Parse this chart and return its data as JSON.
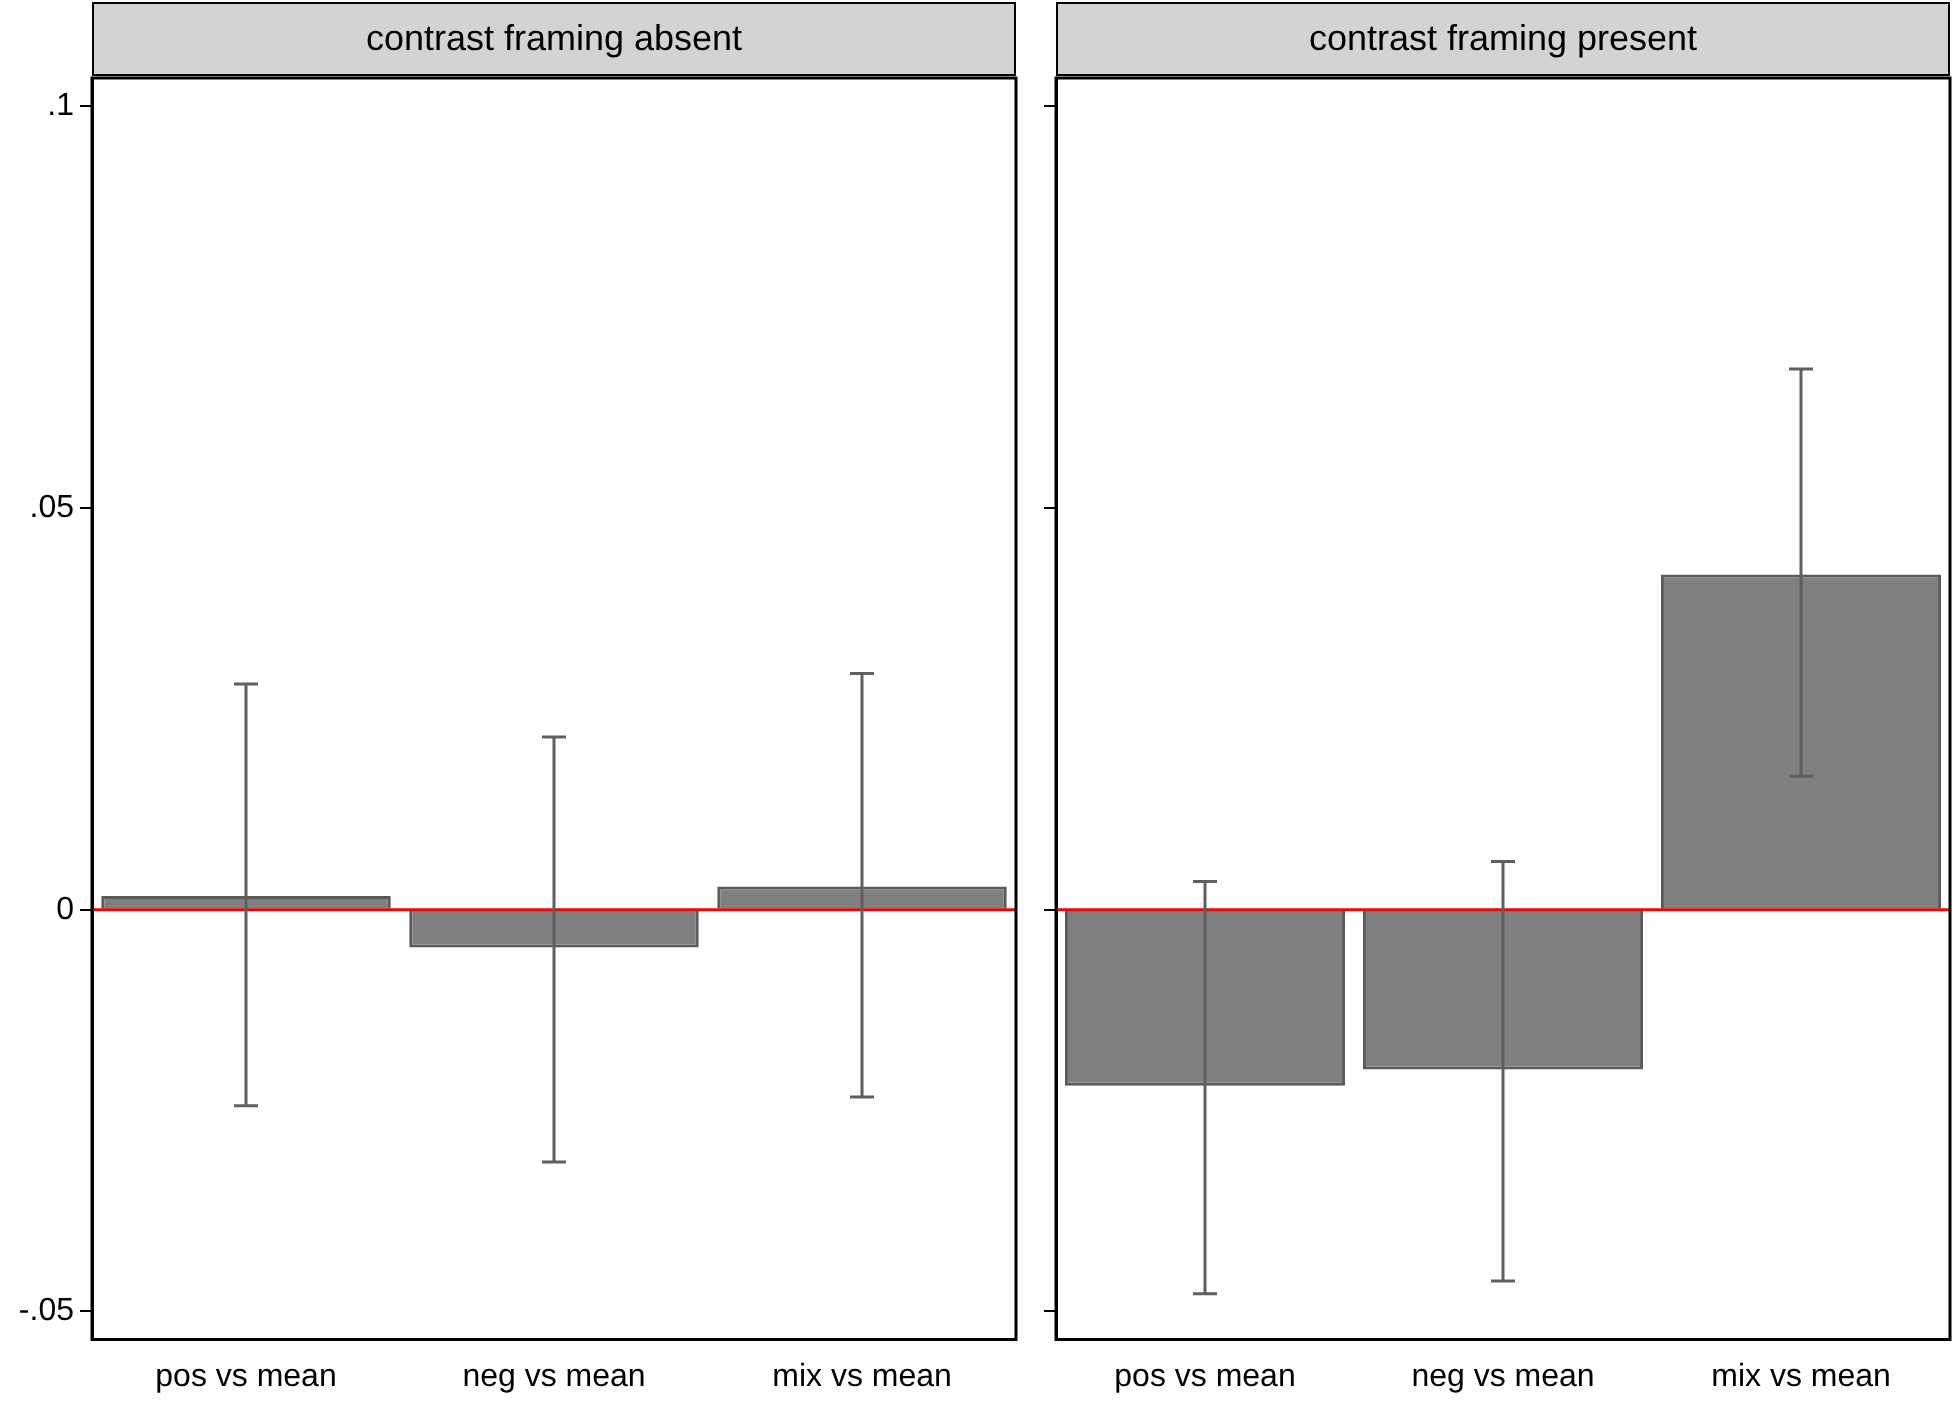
{
  "chart_data": [
    {
      "type": "bar",
      "title": "contrast framing absent",
      "categories": [
        "pos vs mean",
        "neg vs mean",
        "mix vs mean"
      ],
      "values": [
        0.0017,
        -0.0047,
        0.0029
      ],
      "color": "#808080",
      "errors": [
        [
          -0.0244,
          0.0281
        ],
        [
          -0.0314,
          0.0215
        ],
        [
          -0.0233,
          0.0294
        ]
      ],
      "ylim": [
        -0.0535,
        0.1035
      ],
      "yticks": [
        {
          "value": -0.05,
          "label": "-.05"
        },
        {
          "value": 0,
          "label": "0"
        },
        {
          "value": 0.05,
          "label": ".05"
        },
        {
          "value": 0.1,
          "label": ".1"
        }
      ],
      "ref_lines": [
        {
          "axis": "y",
          "value": 0,
          "color": "#ff0000"
        }
      ],
      "grid": false,
      "legend": false
    },
    {
      "type": "bar",
      "title": "contrast framing present",
      "categories": [
        "pos vs mean",
        "neg vs mean",
        "mix vs mean"
      ],
      "values": [
        -0.0219,
        -0.0199,
        0.0417
      ],
      "color": "#808080",
      "errors": [
        [
          -0.0478,
          0.0035
        ],
        [
          -0.0462,
          0.006
        ],
        [
          0.0166,
          0.0673
        ]
      ],
      "ylim": [
        -0.0535,
        0.1035
      ],
      "yticks": [
        {
          "value": -0.05,
          "label": null
        },
        {
          "value": 0,
          "label": null
        },
        {
          "value": 0.05,
          "label": null
        },
        {
          "value": 0.1,
          "label": null
        }
      ],
      "ref_lines": [
        {
          "axis": "y",
          "value": 0,
          "color": "#ff0000"
        }
      ],
      "grid": false,
      "legend": false,
      "tick_labels": "x"
    }
  ]
}
